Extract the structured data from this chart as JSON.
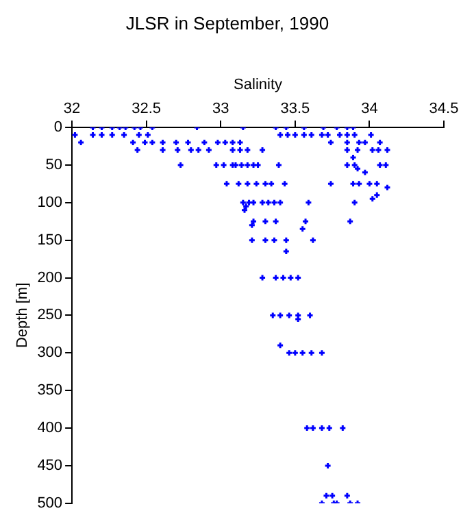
{
  "chart_data": {
    "type": "scatter",
    "title": "JLSR in September, 1990",
    "xlabel": "Salinity",
    "ylabel": "Depth [m]",
    "xlim": [
      32,
      34.5
    ],
    "xticks": [
      32,
      32.5,
      33,
      33.5,
      34,
      34.5
    ],
    "ylim": [
      500,
      0
    ],
    "yticks": [
      0,
      50,
      100,
      150,
      200,
      250,
      300,
      350,
      400,
      450,
      500
    ],
    "grid": false,
    "legend": false,
    "marker": "cross",
    "series": [
      {
        "color": "#0000ff",
        "x": [
          32.14,
          32.2,
          32.27,
          32.32,
          32.36,
          32.42,
          32.46,
          32.54,
          32.84,
          33.15,
          33.37,
          33.44,
          33.56,
          33.69,
          33.78,
          33.85,
          33.89,
          32.02,
          32.14,
          32.2,
          32.27,
          32.35,
          32.45,
          32.51,
          33.4,
          33.45,
          33.5,
          33.56,
          33.61,
          33.68,
          33.72,
          33.8,
          33.85,
          33.9,
          34.01,
          32.06,
          32.41,
          32.49,
          32.54,
          32.61,
          32.7,
          32.78,
          32.89,
          32.98,
          33.03,
          33.08,
          33.13,
          33.74,
          33.85,
          33.93,
          33.97,
          34.07,
          32.44,
          32.61,
          32.71,
          32.8,
          32.85,
          32.92,
          33.08,
          33.13,
          33.18,
          33.28,
          33.85,
          33.92,
          34.02,
          34.06,
          34.12,
          33.89,
          32.73,
          32.97,
          33.02,
          33.08,
          33.1,
          33.14,
          33.18,
          33.22,
          33.25,
          33.39,
          33.85,
          33.9,
          34.07,
          34.11,
          33.92,
          33.97,
          33.04,
          33.12,
          33.18,
          33.24,
          33.3,
          33.34,
          33.43,
          33.74,
          33.89,
          33.93,
          34.0,
          34.05,
          34.12,
          33.15,
          33.19,
          33.22,
          33.28,
          33.32,
          33.36,
          33.4,
          33.59,
          33.9,
          33.17,
          34.02,
          34.05,
          33.16,
          33.22,
          33.3,
          33.37,
          33.57,
          33.87,
          33.21,
          33.55,
          33.21,
          33.3,
          33.36,
          33.44,
          33.62,
          33.44,
          33.28,
          33.37,
          33.42,
          33.47,
          33.52,
          33.35,
          33.4,
          33.46,
          33.52,
          33.6,
          33.52,
          33.4,
          33.46,
          33.5,
          33.55,
          33.61,
          33.68,
          33.58,
          33.62,
          33.68,
          33.73,
          33.82,
          33.72,
          33.71,
          33.75,
          33.85,
          33.68,
          33.76,
          33.78,
          33.87,
          33.92
        ],
        "values": [
          0,
          0,
          0,
          0,
          0,
          0,
          0,
          0,
          0,
          0,
          0,
          0,
          0,
          0,
          0,
          0,
          0,
          10,
          10,
          10,
          10,
          10,
          10,
          10,
          10,
          10,
          10,
          10,
          10,
          10,
          10,
          10,
          10,
          10,
          10,
          20,
          20,
          20,
          20,
          20,
          20,
          20,
          20,
          20,
          20,
          20,
          20,
          20,
          20,
          20,
          20,
          20,
          30,
          30,
          30,
          30,
          30,
          30,
          30,
          30,
          30,
          30,
          30,
          30,
          30,
          30,
          30,
          40,
          50,
          50,
          50,
          50,
          50,
          50,
          50,
          50,
          50,
          50,
          50,
          50,
          50,
          50,
          55,
          60,
          75,
          75,
          75,
          75,
          75,
          75,
          75,
          75,
          75,
          75,
          75,
          75,
          80,
          100,
          100,
          100,
          100,
          100,
          100,
          100,
          100,
          100,
          105,
          95,
          90,
          110,
          125,
          125,
          125,
          125,
          125,
          130,
          135,
          150,
          150,
          150,
          150,
          150,
          165,
          200,
          200,
          200,
          200,
          200,
          250,
          250,
          250,
          250,
          250,
          255,
          290,
          300,
          300,
          300,
          300,
          300,
          400,
          400,
          400,
          400,
          400,
          450,
          490,
          490,
          490,
          500,
          500,
          500,
          500,
          500
        ]
      }
    ]
  }
}
